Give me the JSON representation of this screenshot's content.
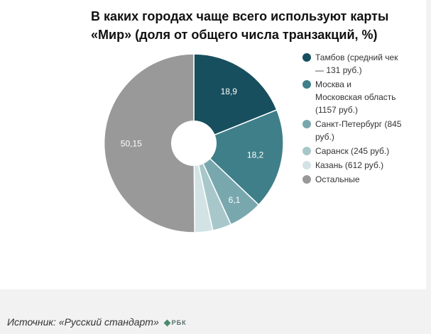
{
  "chart_data": {
    "type": "pie",
    "title_lines": [
      "В каких городах чаще всего используют карты",
      "«Мир» (доля от общего числа транзакций, %)"
    ],
    "categories": [
      "Тамбов (средний чек — 131 руб.)",
      "Москва и Московская область (1157 руб.)",
      "Санкт-Петербург (845 руб.)",
      "Саранск (245 руб.)",
      "Казань (612 руб.)",
      "Остальные"
    ],
    "legend_lines": [
      [
        "Тамбов (средний чек",
        "— 131 руб.)"
      ],
      [
        "Москва и",
        "Московская область",
        "(1157 руб.)"
      ],
      [
        "Санкт-Петербург (845",
        "руб.)"
      ],
      [
        "Саранск (245 руб.)"
      ],
      [
        "Казань (612 руб.)"
      ],
      [
        "Остальные"
      ]
    ],
    "values": [
      18.9,
      18.2,
      6.1,
      3.4,
      3.25,
      50.15
    ],
    "labels": [
      "18,9",
      "18,2",
      "6,1",
      "",
      "",
      "50,15"
    ],
    "colors": [
      "#174f5e",
      "#3f7f89",
      "#78a8ae",
      "#a8c7ca",
      "#d3e3e5",
      "#999999"
    ],
    "label_colors": [
      "#ffffff",
      "#ffffff",
      "#ffffff",
      "#ffffff",
      "#ffffff",
      "#ffffff"
    ],
    "legend_position": "right",
    "donut": true
  },
  "source": {
    "text": "Источник: «Русский стандарт»",
    "logo": "РБК"
  }
}
